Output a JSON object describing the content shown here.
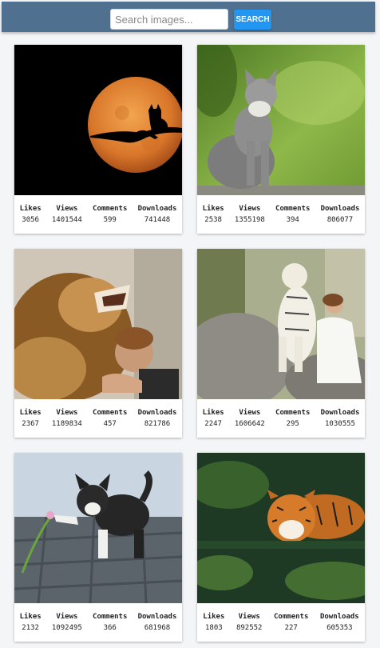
{
  "search": {
    "placeholder": "Search images...",
    "value": "",
    "button_label": "SEARCH"
  },
  "stat_labels": {
    "likes": "Likes",
    "views": "Views",
    "comments": "Comments",
    "downloads": "Downloads"
  },
  "cards": [
    {
      "subject": "cat silhouette on branch against orange moon",
      "likes": "3056",
      "views": "1401544",
      "comments": "599",
      "downloads": "741448"
    },
    {
      "subject": "grey kitten sitting and looking up",
      "likes": "2538",
      "views": "1355198",
      "comments": "394",
      "downloads": "806077"
    },
    {
      "subject": "lion with smiling girl",
      "likes": "2367",
      "views": "1189834",
      "comments": "457",
      "downloads": "821786"
    },
    {
      "subject": "white tiger with woman in white dress on rocks",
      "likes": "2247",
      "views": "1606642",
      "comments": "295",
      "downloads": "1030555"
    },
    {
      "subject": "black and white kitten on cobblestones with flower",
      "likes": "2132",
      "views": "1092495",
      "comments": "366",
      "downloads": "681968"
    },
    {
      "subject": "tiger swimming in green water",
      "likes": "1803",
      "views": "892552",
      "comments": "227",
      "downloads": "605353"
    }
  ]
}
